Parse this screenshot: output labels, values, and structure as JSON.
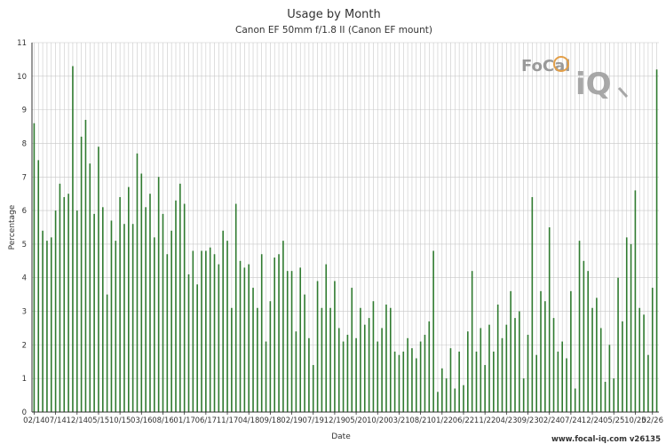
{
  "chart_data": {
    "type": "bar",
    "title": "Usage by Month",
    "subtitle": "Canon EF 50mm f/1.8 II (Canon EF mount)",
    "xlabel": "Date",
    "ylabel": "Percentage",
    "ylim": [
      0,
      11
    ],
    "yticks": [
      0,
      1,
      2,
      3,
      4,
      5,
      6,
      7,
      8,
      9,
      10,
      11
    ],
    "grid": true,
    "bar_color": "#2f7a2f",
    "x_tick_labels": [
      "02/14",
      "07/14",
      "12/14",
      "05/15",
      "10/15",
      "03/16",
      "08/16",
      "01/17",
      "06/17",
      "11/17",
      "04/18",
      "09/18",
      "02/19",
      "07/19",
      "12/19",
      "05/20",
      "10/20",
      "03/21",
      "08/21",
      "01/22",
      "06/22",
      "11/22",
      "04/23",
      "09/23",
      "02/24",
      "07/24",
      "12/24",
      "05/25",
      "10/25",
      "02/26"
    ],
    "x_tick_positions": [
      0,
      5,
      10,
      15,
      20,
      25,
      30,
      35,
      40,
      45,
      50,
      55,
      60,
      65,
      70,
      75,
      80,
      85,
      90,
      95,
      100,
      105,
      110,
      115,
      120,
      125,
      130,
      135,
      140,
      144
    ],
    "values": [
      8.6,
      7.5,
      5.4,
      5.1,
      5.2,
      6.0,
      6.8,
      6.4,
      6.5,
      10.3,
      6.0,
      8.2,
      8.7,
      7.4,
      5.9,
      7.9,
      6.1,
      3.5,
      5.7,
      5.1,
      6.4,
      5.6,
      6.7,
      5.6,
      7.7,
      7.1,
      6.1,
      6.5,
      5.2,
      7.0,
      5.9,
      4.7,
      5.4,
      6.3,
      6.8,
      6.2,
      4.1,
      4.8,
      3.8,
      4.8,
      4.8,
      4.9,
      4.7,
      4.4,
      5.4,
      5.1,
      3.1,
      6.2,
      4.5,
      4.3,
      4.4,
      3.7,
      3.1,
      4.7,
      2.1,
      3.3,
      4.6,
      4.7,
      5.1,
      4.2,
      4.2,
      2.4,
      4.3,
      3.5,
      2.2,
      1.4,
      3.9,
      3.1,
      4.4,
      3.1,
      3.9,
      2.5,
      2.1,
      2.3,
      3.7,
      2.2,
      3.1,
      2.6,
      2.8,
      3.3,
      2.1,
      2.5,
      3.2,
      3.1,
      1.8,
      1.7,
      1.8,
      2.2,
      1.9,
      1.6,
      2.1,
      2.3,
      2.7,
      4.8,
      0.6,
      1.3,
      1.0,
      1.9,
      0.7,
      1.8,
      0.8,
      2.4,
      4.2,
      1.8,
      2.5,
      1.4,
      2.6,
      1.8,
      3.2,
      2.2,
      2.6,
      3.6,
      2.8,
      3.0,
      1.0,
      2.3,
      6.4,
      1.7,
      3.6,
      3.3,
      5.5,
      2.8,
      1.8,
      2.1,
      1.6,
      3.6,
      0.7,
      5.1,
      4.5,
      4.2,
      3.1,
      3.4,
      2.5,
      0.9,
      2.0,
      1.0,
      4.0,
      2.7,
      5.2,
      5.0,
      6.6,
      3.1,
      2.9,
      1.7,
      3.7,
      10.2
    ]
  },
  "watermark": {
    "logo_text": "FoCal",
    "logo_mark": "iQ"
  },
  "footer": {
    "url_text": "www.focal-iq.com  v26135"
  }
}
